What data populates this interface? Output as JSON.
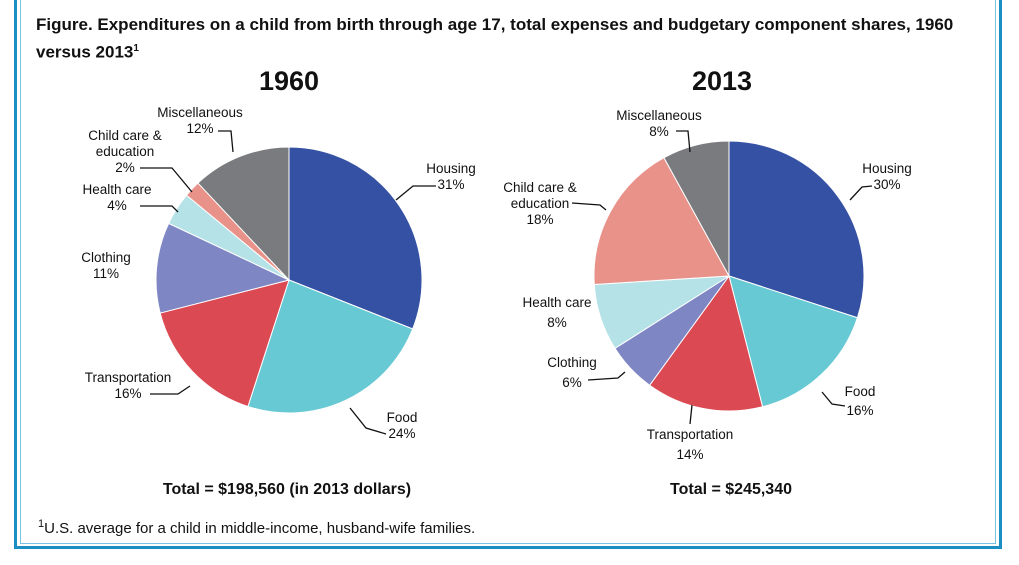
{
  "title": "Figure. Expenditures on a child from birth through age 17, total expenses and budgetary component shares, 1960 versus 2013",
  "title_footnote_mark": "1",
  "footnote": {
    "mark": "1",
    "text": "U.S. average for a child in middle-income, husband-wife families."
  },
  "colors": {
    "Housing": "#3551a4",
    "Food": "#67c9d3",
    "Transportation": "#db4a53",
    "Clothing": "#7f86c4",
    "Health care": "#b5e2e7",
    "Child care & education": "#e8928a",
    "Miscellaneous": "#7a7b7f",
    "border": "#1b8fc4"
  },
  "chart_data": [
    {
      "type": "pie",
      "title": "1960",
      "total": "Total = $198,560 (in 2013 dollars)",
      "slices": [
        {
          "label": "Housing",
          "value": 31,
          "text": "31%"
        },
        {
          "label": "Food",
          "value": 24,
          "text": "24%"
        },
        {
          "label": "Transportation",
          "value": 16,
          "text": "16%"
        },
        {
          "label": "Clothing",
          "value": 11,
          "text": "11%"
        },
        {
          "label": "Health care",
          "value": 4,
          "text": "4%"
        },
        {
          "label": "Child care & education",
          "value": 2,
          "text": "2%"
        },
        {
          "label": "Miscellaneous",
          "value": 12,
          "text": "12%"
        }
      ]
    },
    {
      "type": "pie",
      "title": "2013",
      "total": "Total = $245,340",
      "slices": [
        {
          "label": "Housing",
          "value": 30,
          "text": "30%"
        },
        {
          "label": "Food",
          "value": 16,
          "text": "16%"
        },
        {
          "label": "Transportation",
          "value": 14,
          "text": "14%"
        },
        {
          "label": "Clothing",
          "value": 6,
          "text": "6%"
        },
        {
          "label": "Health care",
          "value": 8,
          "text": "8%"
        },
        {
          "label": "Child care & education",
          "value": 18,
          "text": "18%"
        },
        {
          "label": "Miscellaneous",
          "value": 8,
          "text": "8%"
        }
      ]
    }
  ]
}
